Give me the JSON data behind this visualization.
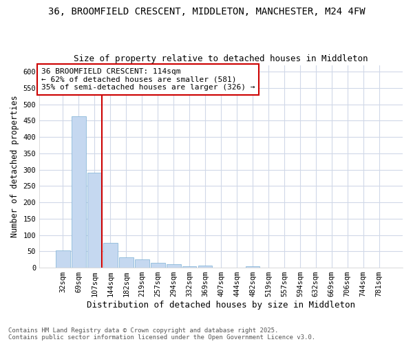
{
  "title": "36, BROOMFIELD CRESCENT, MIDDLETON, MANCHESTER, M24 4FW",
  "subtitle": "Size of property relative to detached houses in Middleton",
  "xlabel": "Distribution of detached houses by size in Middleton",
  "ylabel": "Number of detached properties",
  "categories": [
    "32sqm",
    "69sqm",
    "107sqm",
    "144sqm",
    "182sqm",
    "219sqm",
    "257sqm",
    "294sqm",
    "332sqm",
    "369sqm",
    "407sqm",
    "444sqm",
    "482sqm",
    "519sqm",
    "557sqm",
    "594sqm",
    "632sqm",
    "669sqm",
    "706sqm",
    "744sqm",
    "781sqm"
  ],
  "values": [
    53,
    463,
    290,
    77,
    31,
    25,
    15,
    10,
    5,
    7,
    0,
    0,
    5,
    0,
    0,
    0,
    0,
    0,
    0,
    0,
    0
  ],
  "bar_color": "#c5d8f0",
  "bar_edge_color": "#7bafd4",
  "vline_x_idx": 2,
  "vline_color": "#cc0000",
  "annotation_text": "36 BROOMFIELD CRESCENT: 114sqm\n← 62% of detached houses are smaller (581)\n35% of semi-detached houses are larger (326) →",
  "annotation_box_color": "#ffffff",
  "annotation_box_edge": "#cc0000",
  "ylim": [
    0,
    620
  ],
  "yticks": [
    0,
    50,
    100,
    150,
    200,
    250,
    300,
    350,
    400,
    450,
    500,
    550,
    600
  ],
  "bg_color": "#ffffff",
  "plot_bg_color": "#ffffff",
  "grid_color": "#d0d8e8",
  "footer": "Contains HM Land Registry data © Crown copyright and database right 2025.\nContains public sector information licensed under the Open Government Licence v3.0.",
  "title_fontsize": 10,
  "subtitle_fontsize": 9,
  "xlabel_fontsize": 9,
  "ylabel_fontsize": 8.5,
  "tick_fontsize": 7.5,
  "annotation_fontsize": 8,
  "footer_fontsize": 6.5
}
